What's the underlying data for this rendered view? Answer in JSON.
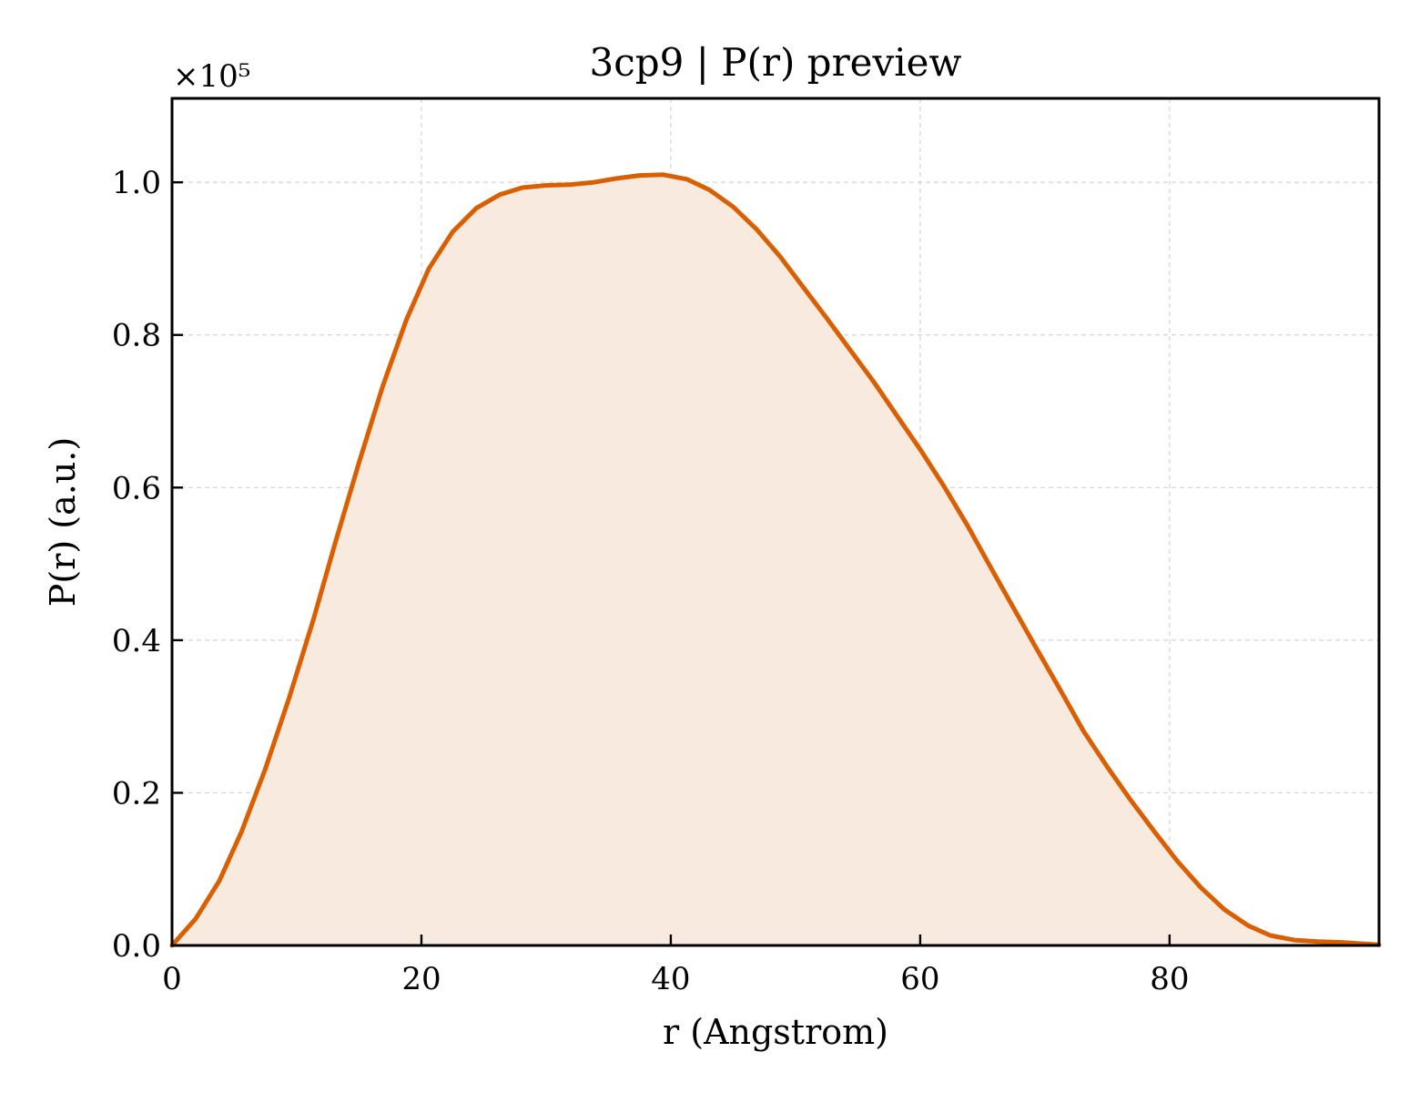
{
  "chart_data": {
    "type": "area",
    "title": "3cp9 | P(r) preview",
    "xlabel": "r (Angstrom)",
    "ylabel": "P(r) (a.u.)",
    "y_offset_label": "×10⁵",
    "xlim": [
      0,
      96.8
    ],
    "ylim": [
      0,
      1.11
    ],
    "xticks": [
      0,
      20,
      40,
      60,
      80
    ],
    "xtick_labels": [
      "0",
      "20",
      "40",
      "60",
      "80"
    ],
    "yticks": [
      0.0,
      0.2,
      0.4,
      0.6,
      0.8,
      1.0
    ],
    "ytick_labels": [
      "0.0",
      "0.2",
      "0.4",
      "0.6",
      "0.8",
      "1.0"
    ],
    "grid": true,
    "colors": {
      "line": "#d95f02",
      "fill": "#f9eadf"
    },
    "series": [
      {
        "x": [
          0,
          1.9,
          3.8,
          5.6,
          7.5,
          9.4,
          11.3,
          13.1,
          15.0,
          16.9,
          18.8,
          20.6,
          22.5,
          24.4,
          26.3,
          28.1,
          30.0,
          31.9,
          33.8,
          35.6,
          37.5,
          39.4,
          41.3,
          43.1,
          45.0,
          46.9,
          48.8,
          50.6,
          52.5,
          54.4,
          56.3,
          58.1,
          60.0,
          61.9,
          63.8,
          65.6,
          67.5,
          69.4,
          71.3,
          73.1,
          75.0,
          76.9,
          78.8,
          80.6,
          82.5,
          84.4,
          86.3,
          88.1,
          90.0,
          91.9,
          93.8,
          95.6,
          96.8
        ],
        "y": [
          0.0,
          0.035,
          0.085,
          0.15,
          0.232,
          0.325,
          0.425,
          0.528,
          0.633,
          0.733,
          0.82,
          0.887,
          0.935,
          0.966,
          0.984,
          0.993,
          0.996,
          0.997,
          1.0,
          1.005,
          1.009,
          1.01,
          1.004,
          0.99,
          0.968,
          0.938,
          0.902,
          0.863,
          0.822,
          0.78,
          0.738,
          0.695,
          0.65,
          0.602,
          0.55,
          0.497,
          0.442,
          0.387,
          0.333,
          0.281,
          0.234,
          0.19,
          0.149,
          0.111,
          0.076,
          0.047,
          0.026,
          0.013,
          0.007,
          0.005,
          0.004,
          0.002,
          0.001
        ]
      }
    ]
  }
}
